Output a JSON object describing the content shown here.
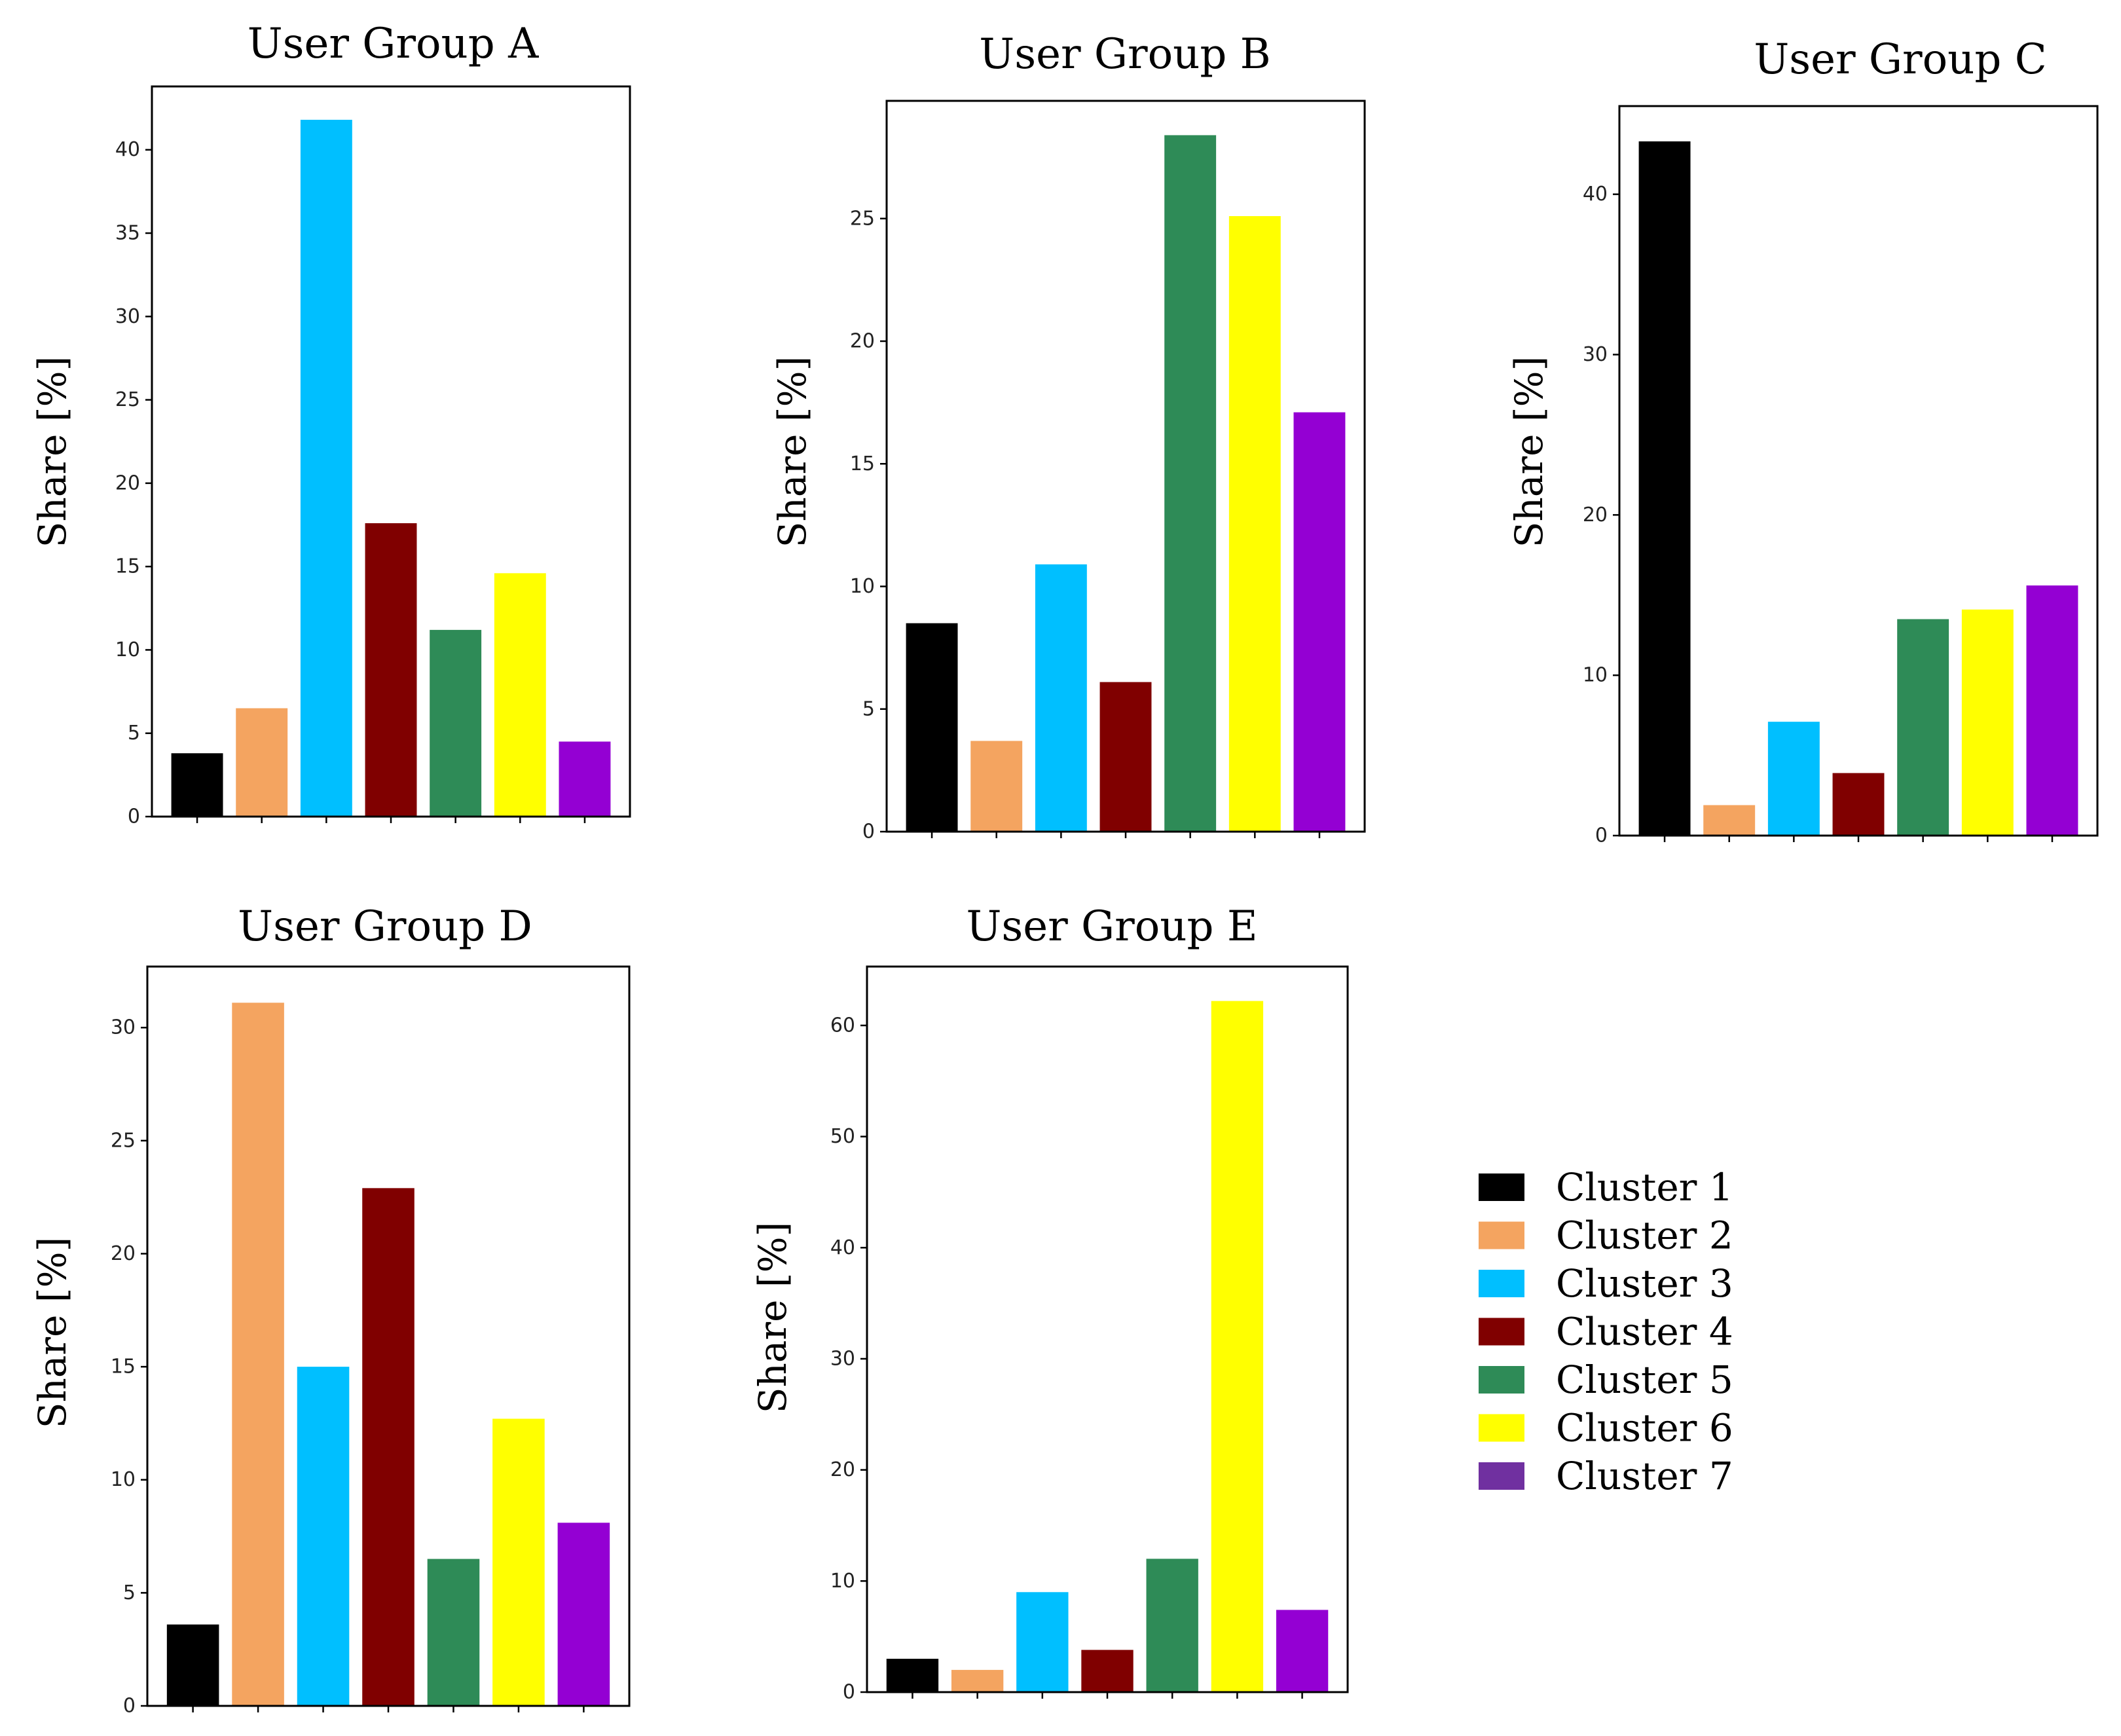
{
  "chart_data": [
    {
      "type": "bar",
      "title": "User Group A",
      "xlabel": "",
      "ylabel": "Share [%]",
      "categories": [
        "Cluster 1",
        "Cluster 2",
        "Cluster 3",
        "Cluster 4",
        "Cluster 5",
        "Cluster 6",
        "Cluster 7"
      ],
      "values": [
        3.8,
        6.5,
        41.8,
        17.6,
        11.2,
        14.6,
        4.5
      ],
      "ylim": [
        0,
        43.8
      ],
      "yticks": [
        0,
        5,
        10,
        15,
        20,
        25,
        30,
        35,
        40
      ]
    },
    {
      "type": "bar",
      "title": "User Group B",
      "xlabel": "",
      "ylabel": "Share [%]",
      "categories": [
        "Cluster 1",
        "Cluster 2",
        "Cluster 3",
        "Cluster 4",
        "Cluster 5",
        "Cluster 6",
        "Cluster 7"
      ],
      "values": [
        8.5,
        3.7,
        10.9,
        6.1,
        28.4,
        25.1,
        17.1
      ],
      "ylim": [
        0,
        29.8
      ],
      "yticks": [
        0,
        5,
        10,
        15,
        20,
        25
      ]
    },
    {
      "type": "bar",
      "title": "User Group C",
      "xlabel": "",
      "ylabel": "Share [%]",
      "categories": [
        "Cluster 1",
        "Cluster 2",
        "Cluster 3",
        "Cluster 4",
        "Cluster 5",
        "Cluster 6",
        "Cluster 7"
      ],
      "values": [
        43.3,
        1.9,
        7.1,
        3.9,
        13.5,
        14.1,
        15.6
      ],
      "ylim": [
        0,
        45.5
      ],
      "yticks": [
        0,
        10,
        20,
        30,
        40
      ]
    },
    {
      "type": "bar",
      "title": "User Group D",
      "xlabel": "",
      "ylabel": "Share [%]",
      "categories": [
        "Cluster 1",
        "Cluster 2",
        "Cluster 3",
        "Cluster 4",
        "Cluster 5",
        "Cluster 6",
        "Cluster 7"
      ],
      "values": [
        3.6,
        31.1,
        15.0,
        22.9,
        6.5,
        12.7,
        8.1
      ],
      "ylim": [
        0,
        32.7
      ],
      "yticks": [
        0,
        5,
        10,
        15,
        20,
        25,
        30
      ]
    },
    {
      "type": "bar",
      "title": "User Group E",
      "xlabel": "",
      "ylabel": "Share [%]",
      "categories": [
        "Cluster 1",
        "Cluster 2",
        "Cluster 3",
        "Cluster 4",
        "Cluster 5",
        "Cluster 6",
        "Cluster 7"
      ],
      "values": [
        3.0,
        2.0,
        9.0,
        3.8,
        12.0,
        62.2,
        7.4
      ],
      "ylim": [
        0,
        65.3
      ],
      "yticks": [
        0,
        10,
        20,
        30,
        40,
        50,
        60
      ]
    }
  ],
  "legend": {
    "position": "bottom-right",
    "items": [
      {
        "label": "Cluster 1",
        "color": "#000000"
      },
      {
        "label": "Cluster 2",
        "color": "#F4A460"
      },
      {
        "label": "Cluster 3",
        "color": "#00BFFF"
      },
      {
        "label": "Cluster 4",
        "color": "#800000"
      },
      {
        "label": "Cluster 5",
        "color": "#2E8B57"
      },
      {
        "label": "Cluster 6",
        "color": "#FFFF00"
      },
      {
        "label": "Cluster 7",
        "color": "#7030A0"
      }
    ]
  },
  "colors": {
    "bar_colors": [
      "#000000",
      "#F4A460",
      "#00BFFF",
      "#800000",
      "#2E8B57",
      "#FFFF00",
      "#9400D3"
    ],
    "axis": "#000000",
    "background": "#FFFFFF"
  }
}
